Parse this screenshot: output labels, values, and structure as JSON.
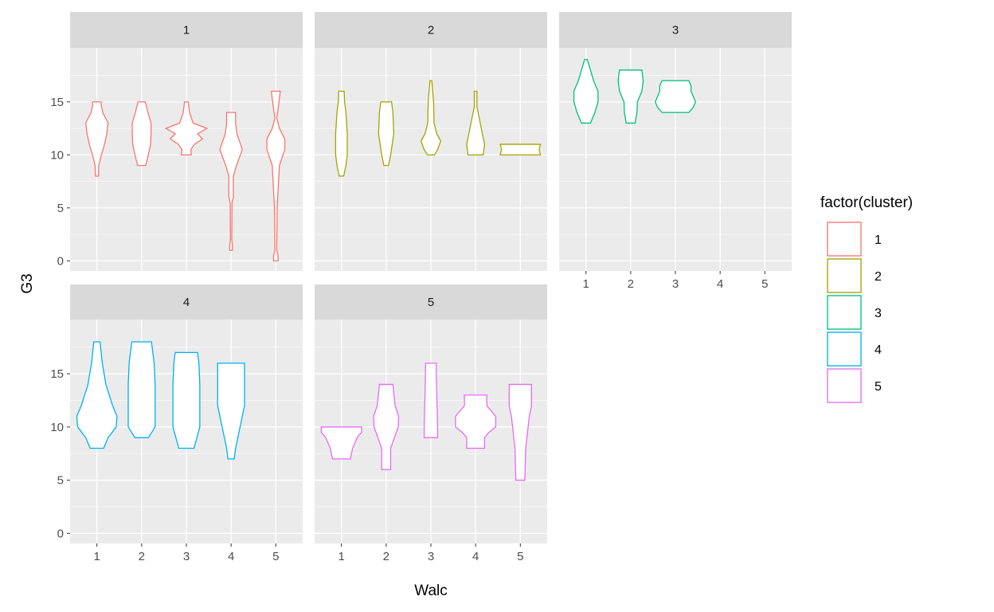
{
  "chart_data": {
    "type": "violin",
    "facet_by": "cluster",
    "xlabel": "Walc",
    "ylabel": "G3",
    "x_ticks": [
      "1",
      "2",
      "3",
      "4",
      "5"
    ],
    "y_ticks": [
      0,
      5,
      10,
      15
    ],
    "ylim": [
      -0.95,
      20.1
    ],
    "xlim": [
      0.4,
      5.6
    ],
    "grid": true,
    "legend": {
      "title": "factor(cluster)",
      "placement": "right",
      "entries": [
        "1",
        "2",
        "3",
        "4",
        "5"
      ]
    },
    "colors": {
      "1": "#F8766D",
      "2": "#A3A500",
      "3": "#00BF7D",
      "4": "#00B0F6",
      "5": "#E76BF3"
    },
    "note_profile": "each violin: Walc value and profile of [G3, half-width in Walc units]",
    "panels": [
      {
        "label": "1",
        "cluster": "1",
        "violins": [
          {
            "walc": 1,
            "profile": [
              [
                8,
                0.035
              ],
              [
                9,
                0.04
              ],
              [
                10,
                0.1
              ],
              [
                11,
                0.17
              ],
              [
                12,
                0.22
              ],
              [
                13,
                0.25
              ],
              [
                14,
                0.13
              ],
              [
                14.6,
                0.1
              ],
              [
                15,
                0.09
              ]
            ]
          },
          {
            "walc": 2,
            "profile": [
              [
                9,
                0.09
              ],
              [
                10,
                0.15
              ],
              [
                11,
                0.2
              ],
              [
                12,
                0.21
              ],
              [
                13,
                0.21
              ],
              [
                14,
                0.14
              ],
              [
                15,
                0.08
              ]
            ]
          },
          {
            "walc": 3,
            "profile": [
              [
                10,
                0.11
              ],
              [
                10.5,
                0.1
              ],
              [
                11,
                0.18
              ],
              [
                11.5,
                0.36
              ],
              [
                12,
                0.25
              ],
              [
                12.5,
                0.46
              ],
              [
                13,
                0.15
              ],
              [
                14,
                0.07
              ],
              [
                15,
                0.04
              ]
            ]
          },
          {
            "walc": 4,
            "profile": [
              [
                1,
                0.03
              ],
              [
                1.5,
                0.03
              ],
              [
                2,
                0.015
              ],
              [
                5.5,
                0.02
              ],
              [
                6,
                0.05
              ],
              [
                8,
                0.05
              ],
              [
                9,
                0.12
              ],
              [
                10.5,
                0.25
              ],
              [
                12,
                0.13
              ],
              [
                13,
                0.1
              ],
              [
                14,
                0.1
              ]
            ]
          },
          {
            "walc": 5,
            "profile": [
              [
                0,
                0.05
              ],
              [
                0.5,
                0.05
              ],
              [
                1,
                0.02
              ],
              [
                5,
                0.03
              ],
              [
                9,
                0.08
              ],
              [
                10.5,
                0.2
              ],
              [
                11.5,
                0.2
              ],
              [
                12.5,
                0.08
              ],
              [
                13.5,
                0.02
              ],
              [
                14,
                0.04
              ],
              [
                15,
                0.07
              ],
              [
                16,
                0.1
              ]
            ]
          }
        ]
      },
      {
        "label": "2",
        "cluster": "2",
        "violins": [
          {
            "walc": 1,
            "profile": [
              [
                8,
                0.05
              ],
              [
                9,
                0.1
              ],
              [
                10,
                0.13
              ],
              [
                12,
                0.13
              ],
              [
                14,
                0.1
              ],
              [
                15,
                0.07
              ],
              [
                16,
                0.06
              ]
            ]
          },
          {
            "walc": 2,
            "profile": [
              [
                9,
                0.05
              ],
              [
                10,
                0.1
              ],
              [
                12,
                0.17
              ],
              [
                14,
                0.15
              ],
              [
                15,
                0.12
              ]
            ]
          },
          {
            "walc": 3,
            "profile": [
              [
                10,
                0.08
              ],
              [
                10.5,
                0.15
              ],
              [
                11.3,
                0.22
              ],
              [
                12,
                0.13
              ],
              [
                13,
                0.07
              ],
              [
                15,
                0.06
              ],
              [
                16,
                0.04
              ],
              [
                17,
                0.02
              ]
            ]
          },
          {
            "walc": 4,
            "profile": [
              [
                10,
                0.17
              ],
              [
                11,
                0.2
              ],
              [
                12,
                0.15
              ],
              [
                13.5,
                0.08
              ],
              [
                14.5,
                0.03
              ],
              [
                16,
                0.03
              ]
            ]
          },
          {
            "walc": 5,
            "profile": [
              [
                10,
                0.45
              ],
              [
                10.5,
                0.42
              ],
              [
                11,
                0.45
              ]
            ]
          }
        ]
      },
      {
        "label": "3",
        "cluster": "3",
        "violins": [
          {
            "walc": 1,
            "profile": [
              [
                13,
                0.1
              ],
              [
                14,
                0.2
              ],
              [
                15,
                0.27
              ],
              [
                16,
                0.27
              ],
              [
                17,
                0.17
              ],
              [
                18,
                0.1
              ],
              [
                19,
                0.03
              ]
            ]
          },
          {
            "walc": 2,
            "profile": [
              [
                13,
                0.1
              ],
              [
                14,
                0.14
              ],
              [
                15,
                0.15
              ],
              [
                16,
                0.25
              ],
              [
                17,
                0.28
              ],
              [
                18,
                0.25
              ]
            ]
          },
          {
            "walc": 3,
            "profile": [
              [
                14,
                0.3
              ],
              [
                14.5,
                0.4
              ],
              [
                15,
                0.45
              ],
              [
                16,
                0.35
              ],
              [
                16.5,
                0.35
              ],
              [
                17,
                0.3
              ]
            ]
          }
        ]
      },
      {
        "label": "4",
        "cluster": "4",
        "violins": [
          {
            "walc": 1,
            "profile": [
              [
                8,
                0.15
              ],
              [
                9,
                0.25
              ],
              [
                10,
                0.43
              ],
              [
                11,
                0.45
              ],
              [
                12,
                0.35
              ],
              [
                14,
                0.2
              ],
              [
                16,
                0.12
              ],
              [
                18,
                0.07
              ]
            ]
          },
          {
            "walc": 2,
            "profile": [
              [
                9,
                0.15
              ],
              [
                10,
                0.3
              ],
              [
                12,
                0.3
              ],
              [
                14,
                0.3
              ],
              [
                16,
                0.28
              ],
              [
                18,
                0.22
              ]
            ]
          },
          {
            "walc": 3,
            "profile": [
              [
                8,
                0.17
              ],
              [
                10,
                0.3
              ],
              [
                14,
                0.3
              ],
              [
                16,
                0.28
              ],
              [
                17,
                0.25
              ]
            ]
          },
          {
            "walc": 4,
            "profile": [
              [
                7,
                0.07
              ],
              [
                8,
                0.1
              ],
              [
                10,
                0.2
              ],
              [
                12,
                0.3
              ],
              [
                14,
                0.3
              ],
              [
                16,
                0.3
              ]
            ]
          }
        ]
      },
      {
        "label": "5",
        "cluster": "5",
        "violins": [
          {
            "walc": 1,
            "profile": [
              [
                7,
                0.2
              ],
              [
                8,
                0.25
              ],
              [
                9,
                0.35
              ],
              [
                9.5,
                0.45
              ],
              [
                10,
                0.45
              ]
            ]
          },
          {
            "walc": 2,
            "profile": [
              [
                6,
                0.1
              ],
              [
                8,
                0.1
              ],
              [
                10,
                0.27
              ],
              [
                11,
                0.28
              ],
              [
                12,
                0.2
              ],
              [
                14,
                0.15
              ]
            ]
          },
          {
            "walc": 3,
            "profile": [
              [
                9,
                0.15
              ],
              [
                10,
                0.15
              ],
              [
                15,
                0.12
              ],
              [
                16,
                0.12
              ]
            ]
          },
          {
            "walc": 4,
            "profile": [
              [
                8,
                0.2
              ],
              [
                8.5,
                0.2
              ],
              [
                9,
                0.2
              ],
              [
                9.5,
                0.3
              ],
              [
                10,
                0.45
              ],
              [
                11,
                0.45
              ],
              [
                12,
                0.25
              ],
              [
                13,
                0.25
              ]
            ]
          },
          {
            "walc": 5,
            "profile": [
              [
                5,
                0.1
              ],
              [
                8,
                0.12
              ],
              [
                11,
                0.2
              ],
              [
                12,
                0.25
              ],
              [
                14,
                0.25
              ]
            ]
          }
        ]
      }
    ]
  }
}
